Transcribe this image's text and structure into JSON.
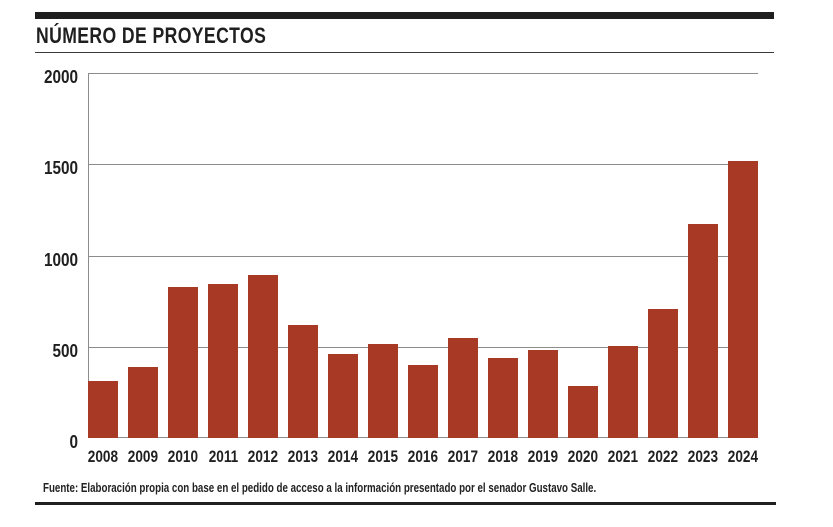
{
  "header": {
    "title": "NÚMERO DE PROYECTOS"
  },
  "footer": {
    "source": "Fuente: Elaboración propia con base en el pedido de acceso a la información presentado por el senador Gustavo Salle."
  },
  "colors": {
    "bar": "#a83a25",
    "grid": "#8c8c8c",
    "ink": "#1f1f1f"
  },
  "chart_data": {
    "type": "bar",
    "title": "NÚMERO DE PROYECTOS",
    "categories": [
      "2008",
      "2009",
      "2010",
      "2011",
      "2012",
      "2013",
      "2014",
      "2015",
      "2016",
      "2017",
      "2018",
      "2019",
      "2020",
      "2021",
      "2022",
      "2023",
      "2024"
    ],
    "values": [
      310,
      390,
      830,
      845,
      895,
      620,
      460,
      515,
      400,
      550,
      440,
      485,
      285,
      505,
      705,
      1175,
      1520
    ],
    "xlabel": "",
    "ylabel": "",
    "ylim": [
      0,
      2000
    ],
    "yticks": [
      0,
      500,
      1000,
      1500,
      2000
    ],
    "grid": true,
    "legend": false,
    "bar_color": "#a83a25",
    "source": "Fuente: Elaboración propia con base en el pedido de acceso a la información presentado por el senador Gustavo Salle."
  }
}
